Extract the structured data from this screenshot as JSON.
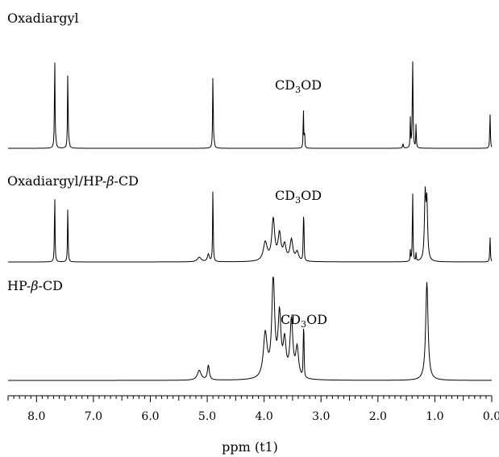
{
  "chart_data": {
    "type": "line",
    "xlabel": "ppm (t1)",
    "x_axis": {
      "range": [
        8.5,
        0.0
      ],
      "reversed": true,
      "major_ticks": [
        "8.0",
        "7.0",
        "6.0",
        "5.0",
        "4.0",
        "3.0",
        "2.0",
        "1.0",
        "0.0"
      ],
      "major_tick_values": [
        8.0,
        7.0,
        6.0,
        5.0,
        4.0,
        3.0,
        2.0,
        1.0,
        0.0
      ],
      "minor_step": 0.1
    },
    "series": [
      {
        "name": "Oxadiargyl",
        "solvent_label": "CD3OD",
        "solvent_ppm": 3.31,
        "peaks": [
          {
            "ppm": 7.68,
            "h": 1.0,
            "w": 0.006
          },
          {
            "ppm": 7.66,
            "h": 0.05,
            "w": 0.01
          },
          {
            "ppm": 7.45,
            "h": 0.85,
            "w": 0.006
          },
          {
            "ppm": 7.43,
            "h": 0.05,
            "w": 0.01
          },
          {
            "ppm": 4.9,
            "h": 0.82,
            "w": 0.006
          },
          {
            "ppm": 4.88,
            "h": 0.05,
            "w": 0.01
          },
          {
            "ppm": 3.31,
            "h": 0.47,
            "w": 0.005
          },
          {
            "ppm": 3.29,
            "h": 0.2,
            "w": 0.005
          },
          {
            "ppm": 1.56,
            "h": 0.05,
            "w": 0.008
          },
          {
            "ppm": 1.43,
            "h": 0.33,
            "w": 0.005
          },
          {
            "ppm": 1.39,
            "h": 1.0,
            "w": 0.007
          },
          {
            "ppm": 1.33,
            "h": 0.28,
            "w": 0.005
          },
          {
            "ppm": 0.03,
            "h": 0.4,
            "w": 0.006
          }
        ]
      },
      {
        "name": "Oxadiargyl/HP-β-CD",
        "solvent_label": "CD3OD",
        "solvent_ppm": 3.31,
        "peaks": [
          {
            "ppm": 7.68,
            "h": 0.9,
            "w": 0.006
          },
          {
            "ppm": 7.45,
            "h": 0.75,
            "w": 0.006
          },
          {
            "ppm": 5.14,
            "h": 0.06,
            "w": 0.04
          },
          {
            "ppm": 4.98,
            "h": 0.1,
            "w": 0.02
          },
          {
            "ppm": 4.9,
            "h": 1.0,
            "w": 0.006
          },
          {
            "ppm": 3.98,
            "h": 0.25,
            "w": 0.04
          },
          {
            "ppm": 3.84,
            "h": 0.55,
            "w": 0.03
          },
          {
            "ppm": 3.73,
            "h": 0.35,
            "w": 0.03
          },
          {
            "ppm": 3.64,
            "h": 0.2,
            "w": 0.03
          },
          {
            "ppm": 3.52,
            "h": 0.28,
            "w": 0.03
          },
          {
            "ppm": 3.42,
            "h": 0.12,
            "w": 0.03
          },
          {
            "ppm": 3.31,
            "h": 0.55,
            "w": 0.005
          },
          {
            "ppm": 3.3,
            "h": 0.4,
            "w": 0.005
          },
          {
            "ppm": 1.43,
            "h": 0.15,
            "w": 0.005
          },
          {
            "ppm": 1.39,
            "h": 0.97,
            "w": 0.006
          },
          {
            "ppm": 1.33,
            "h": 0.12,
            "w": 0.005
          },
          {
            "ppm": 1.17,
            "h": 0.85,
            "w": 0.015
          },
          {
            "ppm": 1.14,
            "h": 0.75,
            "w": 0.015
          },
          {
            "ppm": 0.03,
            "h": 0.35,
            "w": 0.006
          }
        ]
      },
      {
        "name": "HP-β-CD",
        "solvent_label": "CD3OD",
        "solvent_ppm": 3.31,
        "peaks": [
          {
            "ppm": 5.14,
            "h": 0.1,
            "w": 0.04
          },
          {
            "ppm": 4.98,
            "h": 0.15,
            "w": 0.02
          },
          {
            "ppm": 3.98,
            "h": 0.45,
            "w": 0.04
          },
          {
            "ppm": 3.84,
            "h": 1.0,
            "w": 0.03
          },
          {
            "ppm": 3.73,
            "h": 0.62,
            "w": 0.03
          },
          {
            "ppm": 3.64,
            "h": 0.35,
            "w": 0.03
          },
          {
            "ppm": 3.52,
            "h": 0.58,
            "w": 0.03
          },
          {
            "ppm": 3.42,
            "h": 0.3,
            "w": 0.03
          },
          {
            "ppm": 3.31,
            "h": 0.45,
            "w": 0.005
          },
          {
            "ppm": 3.3,
            "h": 0.35,
            "w": 0.005
          },
          {
            "ppm": 1.14,
            "h": 1.0,
            "w": 0.025
          }
        ]
      }
    ],
    "grid": false,
    "legend": "none"
  }
}
